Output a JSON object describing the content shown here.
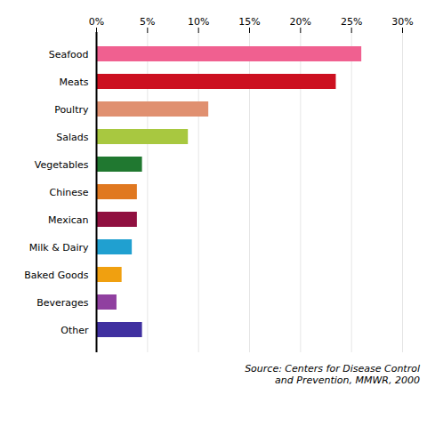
{
  "chart_data": {
    "type": "bar",
    "orientation": "horizontal",
    "categories": [
      "Seafood",
      "Meats",
      "Poultry",
      "Salads",
      "Vegetables",
      "Chinese",
      "Mexican",
      "Milk & Dairy",
      "Baked Goods",
      "Beverages",
      "Other"
    ],
    "values": [
      26.0,
      23.5,
      11.0,
      9.0,
      4.5,
      4.0,
      4.0,
      3.5,
      2.5,
      2.0,
      4.5
    ],
    "colors": [
      "#F06090",
      "#CC1020",
      "#E09070",
      "#A8C840",
      "#207830",
      "#E07820",
      "#901040",
      "#20A0D0",
      "#F0A010",
      "#9040A0",
      "#4030A0"
    ],
    "xlim": [
      0,
      30
    ],
    "xticks": [
      {
        "value": 0,
        "label": "0%"
      },
      {
        "value": 5,
        "label": "5%"
      },
      {
        "value": 10,
        "label": "10%"
      },
      {
        "value": 15,
        "label": "15%"
      },
      {
        "value": 20,
        "label": "20%"
      },
      {
        "value": 25,
        "label": "25%"
      },
      {
        "value": 30,
        "label": "30%"
      }
    ],
    "grid": true,
    "annotation": "Source: Centers for Disease Control\nand Prevention, MMWR, 2000"
  }
}
